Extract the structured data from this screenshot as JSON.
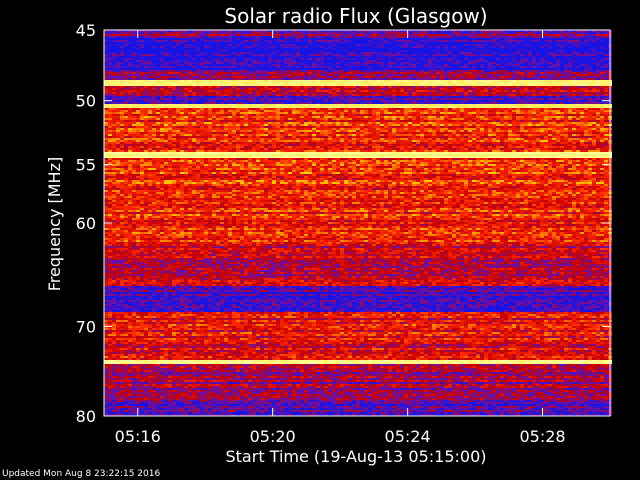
{
  "chart_data": {
    "type": "heatmap",
    "title": "Solar radio Flux (Glasgow)",
    "xlabel": "Start Time (19-Aug-13 05:15:00)",
    "ylabel": "Frequency [MHz]",
    "x_unit": "time",
    "x_range": [
      "05:15:00",
      "05:30:00"
    ],
    "y_range": [
      45,
      80
    ],
    "y_reversed": true,
    "y_scale": "log",
    "xticks": [
      "05:16",
      "05:20",
      "05:24",
      "05:28"
    ],
    "yticks": [
      45,
      50,
      55,
      60,
      70,
      80
    ],
    "colormap": [
      "#1414e6",
      "#6a10a8",
      "#c80000",
      "#ff2a00",
      "#ffd000",
      "#ffff9a"
    ],
    "bands": [
      {
        "from": 45,
        "to": 45.6,
        "level": 0.25
      },
      {
        "from": 45.6,
        "to": 47.8,
        "level": 0.02
      },
      {
        "from": 47.8,
        "to": 48.5,
        "level": 0.3
      },
      {
        "from": 48.5,
        "to": 48.9,
        "level": 0.95
      },
      {
        "from": 48.9,
        "to": 49.6,
        "level": 0.35
      },
      {
        "from": 49.6,
        "to": 50.2,
        "level": 0.15
      },
      {
        "from": 50.2,
        "to": 50.5,
        "level": 0.93
      },
      {
        "from": 50.5,
        "to": 54.0,
        "level": 0.55
      },
      {
        "from": 54.0,
        "to": 54.5,
        "level": 0.97
      },
      {
        "from": 54.5,
        "to": 62.0,
        "level": 0.55
      },
      {
        "from": 62.0,
        "to": 66.0,
        "level": 0.38
      },
      {
        "from": 66.0,
        "to": 68.5,
        "level": 0.12
      },
      {
        "from": 68.5,
        "to": 73.5,
        "level": 0.48
      },
      {
        "from": 73.5,
        "to": 74.0,
        "level": 0.96
      },
      {
        "from": 74.0,
        "to": 78.0,
        "level": 0.3
      },
      {
        "from": 78.0,
        "to": 80.0,
        "level": 0.18
      }
    ],
    "grid": false
  },
  "footer": {
    "updated": "Updated Mon Aug  8 23:22:15 2016"
  }
}
